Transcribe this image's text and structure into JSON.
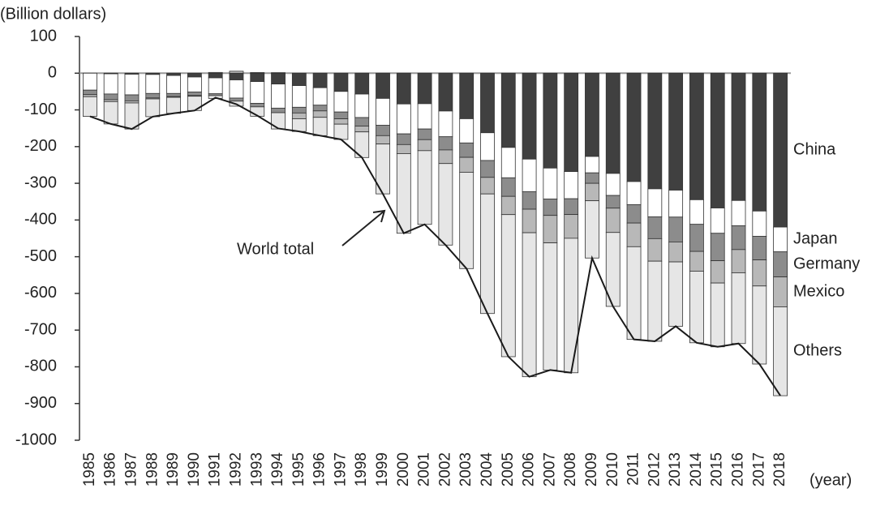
{
  "chart_data": {
    "type": "stacked-bar-line",
    "y_label": "(Billion dollars)",
    "x_label": "(year)",
    "categories": [
      "1985",
      "1986",
      "1987",
      "1988",
      "1989",
      "1990",
      "1991",
      "1992",
      "1993",
      "1994",
      "1995",
      "1996",
      "1997",
      "1998",
      "1999",
      "2000",
      "2001",
      "2002",
      "2003",
      "2004",
      "2005",
      "2006",
      "2007",
      "2008",
      "2009",
      "2010",
      "2011",
      "2012",
      "2013",
      "2014",
      "2015",
      "2016",
      "2017",
      "2018"
    ],
    "series": [
      {
        "name": "China",
        "color": "#404040",
        "values": [
          0,
          -1.7,
          -2.8,
          -3.5,
          -6.2,
          -10.4,
          -12.7,
          -18.3,
          -22.8,
          -29.5,
          -33.8,
          -39.5,
          -49.7,
          -56.9,
          -68.7,
          -83.8,
          -83.1,
          -103.1,
          -124.1,
          -162.3,
          -202.3,
          -234.1,
          -258.5,
          -268.0,
          -226.9,
          -273.1,
          -295.3,
          -315.1,
          -318.7,
          -344.8,
          -367.3,
          -346.8,
          -375.6,
          -419.2
        ]
      },
      {
        "name": "Japan",
        "color": "#ffffff",
        "values": [
          -46.2,
          -55.0,
          -56.3,
          -51.8,
          -49.1,
          -41.1,
          -43.4,
          -49.6,
          -59.4,
          -65.7,
          -59.1,
          -47.7,
          -56.1,
          -64.0,
          -73.4,
          -81.6,
          -69.0,
          -70.1,
          -66.0,
          -75.6,
          -82.7,
          -88.6,
          -84.3,
          -74.1,
          -44.7,
          -60.1,
          -63.2,
          -76.3,
          -73.4,
          -67.0,
          -68.9,
          -68.9,
          -68.8,
          -67.6
        ]
      },
      {
        "name": "Germany",
        "color": "#8c8c8c",
        "values": [
          -12.2,
          -15.6,
          -16.3,
          -12.2,
          -8.3,
          -9.4,
          -4.9,
          -8.3,
          -9.6,
          -12.5,
          -15.5,
          -15.6,
          -18.6,
          -23.2,
          -28.1,
          -29.1,
          -29.0,
          -35.9,
          -39.2,
          -46.0,
          -50.6,
          -47.9,
          -44.7,
          -43.0,
          -28.5,
          -34.5,
          -49.8,
          -59.4,
          -67.7,
          -73.8,
          -74.8,
          -64.9,
          -64.3,
          -68.3
        ]
      },
      {
        "name": "Mexico",
        "color": "#b8b8b8",
        "values": [
          -5.7,
          -5.2,
          -5.7,
          -2.6,
          -2.2,
          -1.9,
          2.1,
          5.4,
          1.7,
          1.4,
          -15.8,
          -17.5,
          -14.5,
          -15.9,
          -22.8,
          -24.6,
          -30.0,
          -37.1,
          -40.6,
          -45.1,
          -49.7,
          -64.1,
          -74.8,
          -64.7,
          -47.5,
          -66.3,
          -64.5,
          -61.4,
          -54.4,
          -53.8,
          -60.7,
          -63.2,
          -71.1,
          -81.5
        ]
      },
      {
        "name": "Others",
        "color": "#e6e6e6",
        "values": [
          -53.6,
          -60.8,
          -71.0,
          -48.4,
          -43.6,
          -38.9,
          -7.8,
          -13.7,
          -25.5,
          -44.3,
          -34.6,
          -49.9,
          -41.6,
          -69.8,
          -135.8,
          -217.0,
          -200.8,
          -222.1,
          -262.5,
          -325.8,
          -387.1,
          -392.3,
          -346.5,
          -366.4,
          -156.0,
          -201.4,
          -252.6,
          -218.2,
          -175.3,
          -195.1,
          -173.8,
          -192.8,
          -212.6,
          -242.1
        ]
      }
    ],
    "line": {
      "name": "World total",
      "color": "#1a1a1a",
      "values": [
        -117.7,
        -138.3,
        -152.1,
        -118.5,
        -109.4,
        -101.7,
        -66.7,
        -84.5,
        -115.6,
        -150.6,
        -158.8,
        -170.2,
        -180.5,
        -229.8,
        -328.8,
        -436.1,
        -411.9,
        -468.3,
        -532.4,
        -654.8,
        -772.4,
        -827.0,
        -808.8,
        -816.2,
        -503.6,
        -635.4,
        -725.4,
        -730.4,
        -689.5,
        -734.5,
        -745.5,
        -736.6,
        -792.4,
        -878.7
      ]
    },
    "ylim": [
      -1000,
      100
    ],
    "yticks": [
      100,
      0,
      -100,
      -200,
      -300,
      -400,
      -500,
      -600,
      -700,
      -800,
      -900,
      -1000
    ],
    "grid": false
  }
}
